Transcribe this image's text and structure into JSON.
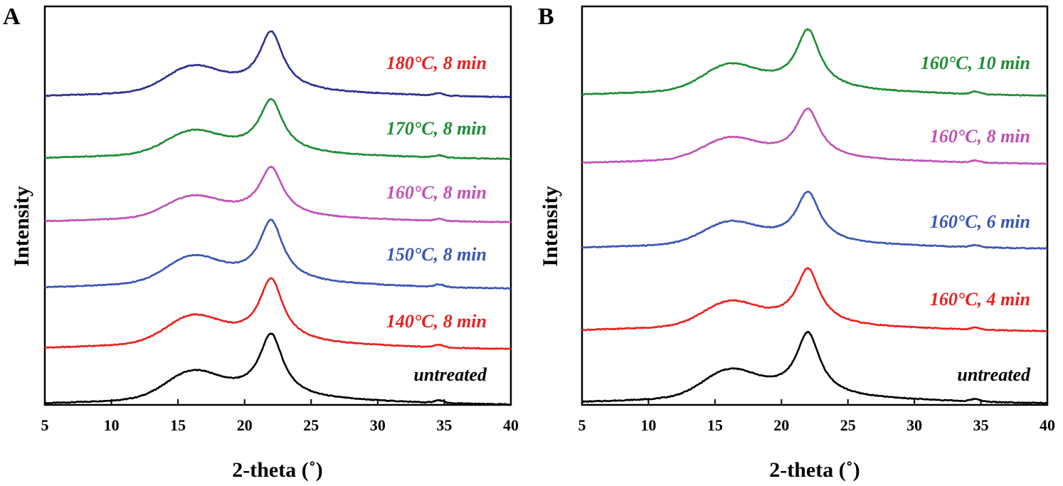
{
  "chart_data": [
    {
      "panel": "A",
      "type": "line",
      "xlabel": "2-theta (˚)",
      "ylabel": "Intensity",
      "xlim": [
        5,
        40
      ],
      "xticks": [
        5,
        10,
        15,
        20,
        25,
        30,
        35,
        40
      ],
      "yticks_shown": false,
      "series": [
        {
          "name": "untreated",
          "color": "#000000",
          "baseline_rank": 0
        },
        {
          "name": "140°C, 8 min",
          "color": "#e8211f",
          "baseline_rank": 1
        },
        {
          "name": "150°C, 8 min",
          "color": "#3a55b4",
          "baseline_rank": 2
        },
        {
          "name": "160°C, 8 min",
          "color": "#c050b5",
          "baseline_rank": 3
        },
        {
          "name": "170°C, 8 min",
          "color": "#1e8c34",
          "baseline_rank": 4
        },
        {
          "name": "180°C, 8 min",
          "color": "#e8211f",
          "baseline_rank": 5
        }
      ],
      "label_colors": [
        "#000000",
        "#e8211f",
        "#3a55b4",
        "#c050b5",
        "#1e8c34",
        "#e8211f"
      ],
      "line_colors": [
        "#000000",
        "#e8211f",
        "#3a55b4",
        "#c050b5",
        "#1e8c34",
        "#2e2f8f"
      ],
      "peaks_2theta": [
        16.0,
        22.0,
        34.6
      ]
    },
    {
      "panel": "B",
      "type": "line",
      "xlabel": "2-theta (˚)",
      "ylabel": "Intensity",
      "xlim": [
        5,
        40
      ],
      "xticks": [
        5,
        10,
        15,
        20,
        25,
        30,
        35,
        40
      ],
      "yticks_shown": false,
      "series": [
        {
          "name": "untreated",
          "color": "#000000",
          "baseline_rank": 0
        },
        {
          "name": "160°C, 4 min",
          "color": "#e8211f",
          "baseline_rank": 1
        },
        {
          "name": "160°C, 6 min",
          "color": "#3a55b4",
          "baseline_rank": 2
        },
        {
          "name": "160°C, 8 min",
          "color": "#c050b5",
          "baseline_rank": 3
        },
        {
          "name": "160°C, 10 min",
          "color": "#1e8c34",
          "baseline_rank": 4
        }
      ],
      "label_colors": [
        "#000000",
        "#e8211f",
        "#3a55b4",
        "#c050b5",
        "#1e8c34"
      ],
      "line_colors": [
        "#000000",
        "#e8211f",
        "#3a55b4",
        "#c050b5",
        "#1e8c34"
      ],
      "peaks_2theta": [
        16.0,
        22.0,
        34.6
      ]
    }
  ]
}
